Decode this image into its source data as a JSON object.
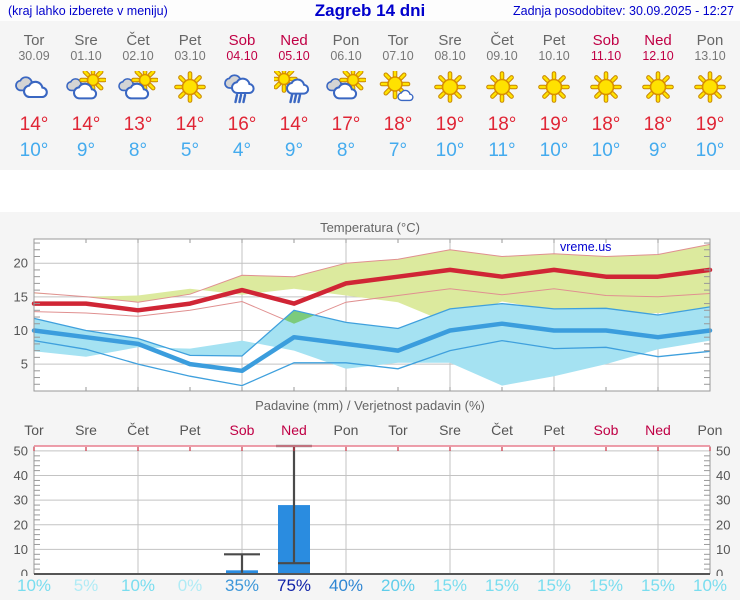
{
  "header": {
    "hint": "(kraj lahko izberete v meniju)",
    "title": "Zagreb 14 dni",
    "updated": "Zadnja posodobitev: 30.09.2025 - 12:27"
  },
  "colors": {
    "header_blue": "#0000cc",
    "weekend": "#c00045",
    "tmax_red": "#e02535",
    "tmin_blue": "#44abee",
    "grid": "#c3c3c3",
    "axis_text": "#555555"
  },
  "forecast": {
    "days": [
      {
        "name": "Tor",
        "date": "30.09",
        "icon": "cloudy",
        "weekend": false,
        "tmax": 14,
        "tmin": 10
      },
      {
        "name": "Sre",
        "date": "01.10",
        "icon": "partly-cloudy",
        "weekend": false,
        "tmax": 14,
        "tmin": 9
      },
      {
        "name": "Čet",
        "date": "02.10",
        "icon": "partly-cloudy",
        "weekend": false,
        "tmax": 13,
        "tmin": 8
      },
      {
        "name": "Pet",
        "date": "03.10",
        "icon": "sunny",
        "weekend": false,
        "tmax": 14,
        "tmin": 5
      },
      {
        "name": "Sob",
        "date": "04.10",
        "icon": "rain",
        "weekend": true,
        "tmax": 16,
        "tmin": 4
      },
      {
        "name": "Ned",
        "date": "05.10",
        "icon": "sun-shower",
        "weekend": true,
        "tmax": 14,
        "tmin": 9
      },
      {
        "name": "Pon",
        "date": "06.10",
        "icon": "partly-cloudy",
        "weekend": false,
        "tmax": 17,
        "tmin": 8
      },
      {
        "name": "Tor",
        "date": "07.10",
        "icon": "mostly-sunny",
        "weekend": false,
        "tmax": 18,
        "tmin": 7
      },
      {
        "name": "Sre",
        "date": "08.10",
        "icon": "sunny",
        "weekend": false,
        "tmax": 19,
        "tmin": 10
      },
      {
        "name": "Čet",
        "date": "09.10",
        "icon": "sunny",
        "weekend": false,
        "tmax": 18,
        "tmin": 11
      },
      {
        "name": "Pet",
        "date": "10.10",
        "icon": "sunny",
        "weekend": false,
        "tmax": 19,
        "tmin": 10
      },
      {
        "name": "Sob",
        "date": "11.10",
        "icon": "sunny",
        "weekend": true,
        "tmax": 18,
        "tmin": 10
      },
      {
        "name": "Ned",
        "date": "12.10",
        "icon": "sunny",
        "weekend": true,
        "tmax": 18,
        "tmin": 9
      },
      {
        "name": "Pon",
        "date": "13.10",
        "icon": "sunny",
        "weekend": false,
        "tmax": 19,
        "tmin": 10
      }
    ]
  },
  "chart_data": [
    {
      "id": "temperature",
      "type": "line",
      "title": "Temperatura (°C)",
      "watermark": "vreme.us",
      "ylim": [
        1,
        23.6
      ],
      "yticks": [
        5,
        10,
        15,
        20
      ],
      "grid_day_numbers": [
        3,
        5,
        7,
        9,
        11,
        13
      ],
      "series": [
        {
          "name": "max_temp",
          "color": "#d02535",
          "width": 4.5,
          "values": [
            14,
            14,
            13,
            14,
            16,
            14,
            17,
            18,
            19,
            18,
            19,
            18,
            18,
            19
          ]
        },
        {
          "name": "min_temp",
          "color": "#3b9ddd",
          "width": 4.5,
          "values": [
            10,
            9,
            8,
            5,
            4,
            9,
            8,
            7,
            10,
            11,
            10,
            10,
            9,
            10
          ]
        }
      ],
      "bands": [
        {
          "name": "max_range",
          "fill": "#dcea9e",
          "edge": "#e09090",
          "upper": [
            15.6,
            15.0,
            14.2,
            15.4,
            18.2,
            18.0,
            20.0,
            20.6,
            22.0,
            21.0,
            21.4,
            21.0,
            21.3,
            22.8
          ],
          "lower": [
            12.8,
            12.6,
            12.1,
            13.0,
            14.3,
            11.0,
            14.2,
            15.2,
            16.2,
            15.3,
            16.2,
            15.2,
            15.0,
            15.5
          ]
        },
        {
          "name": "min_range",
          "fill": "#a5e2f2",
          "edge": "#3fa0dd",
          "upper": [
            11.8,
            10.0,
            8.8,
            6.3,
            6.2,
            13.0,
            11.2,
            10.3,
            13.2,
            14.0,
            13.2,
            13.3,
            12.3,
            13.5
          ],
          "lower": [
            8.5,
            7.2,
            5.0,
            3.2,
            1.8,
            5.2,
            5.2,
            4.3,
            7.0,
            8.5,
            7.3,
            7.5,
            6.1,
            6.9
          ]
        }
      ],
      "overlap_fill": "#7ccb7c"
    },
    {
      "id": "precipitation",
      "type": "bar",
      "title": "Padavine (mm) / Verjetnost padavin (%)",
      "ylim": [
        0,
        52
      ],
      "yticks": [
        0,
        10,
        20,
        30,
        40,
        50
      ],
      "grid_day_numbers": [
        3,
        5,
        7,
        9,
        11,
        13
      ],
      "bar_color": "#2a8ce0",
      "whisker_color": "#4a4a4a",
      "top_border_color": "#e87f8f",
      "top_tick_color": "#cc3344",
      "bars": [
        {
          "day_number": 5,
          "value": 1.5,
          "whisker_hi": 8
        },
        {
          "day_number": 6,
          "value": 28,
          "marker_lo": 4.4,
          "whisker_hi": 52
        }
      ],
      "probabilities": {
        "values": [
          "10%",
          "5%",
          "10%",
          "0%",
          "35%",
          "75%",
          "40%",
          "20%",
          "15%",
          "15%",
          "15%",
          "15%",
          "15%",
          "10%"
        ],
        "colors": [
          "#79ddef",
          "#b0ebf5",
          "#79ddef",
          "#b0ebf5",
          "#3d97d9",
          "#1023a8",
          "#2e86d3",
          "#5ecdea",
          "#79ddef",
          "#79ddef",
          "#79ddef",
          "#79ddef",
          "#79ddef",
          "#79ddef"
        ]
      }
    }
  ]
}
